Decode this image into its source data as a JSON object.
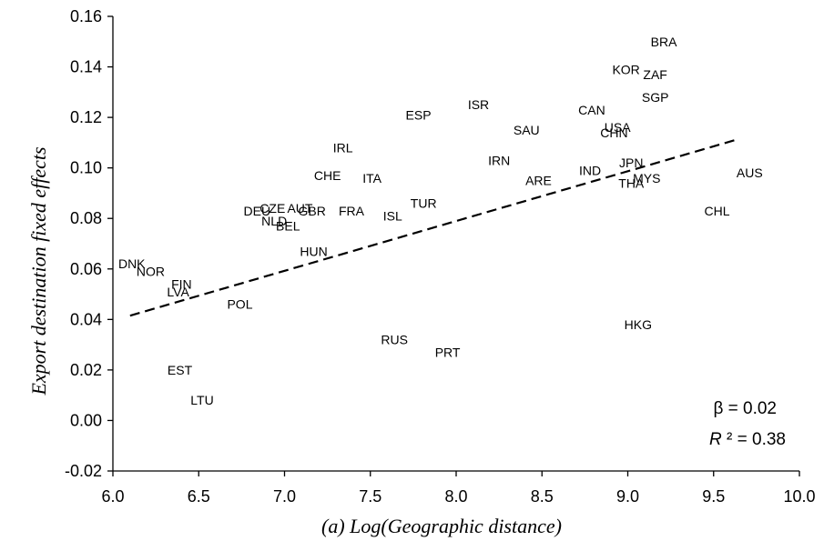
{
  "chart_data": {
    "type": "scatter",
    "xlabel": "(a) Log(Geographic distance)",
    "ylabel": "Export destination fixed effects",
    "xlim": [
      6.0,
      10.0
    ],
    "ylim": [
      -0.02,
      0.16
    ],
    "x_ticks": [
      "6.0",
      "6.5",
      "7.0",
      "7.5",
      "8.0",
      "8.5",
      "9.0",
      "9.5",
      "10.0"
    ],
    "y_ticks": [
      "-0.02",
      "0.00",
      "0.02",
      "0.04",
      "0.06",
      "0.08",
      "0.10",
      "0.12",
      "0.14",
      "0.16"
    ],
    "grid": false,
    "marker": "text-label",
    "points": [
      {
        "label": "BRA",
        "x": 9.21,
        "y": 0.15
      },
      {
        "label": "KOR",
        "x": 8.99,
        "y": 0.139
      },
      {
        "label": "ZAF",
        "x": 9.16,
        "y": 0.137
      },
      {
        "label": "SGP",
        "x": 9.16,
        "y": 0.128
      },
      {
        "label": "ISR",
        "x": 8.13,
        "y": 0.125
      },
      {
        "label": "CAN",
        "x": 8.79,
        "y": 0.123
      },
      {
        "label": "ESP",
        "x": 7.78,
        "y": 0.121
      },
      {
        "label": "SAU",
        "x": 8.41,
        "y": 0.115
      },
      {
        "label": "USA",
        "x": 8.94,
        "y": 0.116
      },
      {
        "label": "CHN",
        "x": 8.92,
        "y": 0.114
      },
      {
        "label": "IRL",
        "x": 7.34,
        "y": 0.108
      },
      {
        "label": "IRN",
        "x": 8.25,
        "y": 0.103
      },
      {
        "label": "JPN",
        "x": 9.02,
        "y": 0.102
      },
      {
        "label": "IND",
        "x": 8.78,
        "y": 0.099
      },
      {
        "label": "AUS",
        "x": 9.71,
        "y": 0.098
      },
      {
        "label": "CHE",
        "x": 7.25,
        "y": 0.097
      },
      {
        "label": "ITA",
        "x": 7.51,
        "y": 0.096
      },
      {
        "label": "MYS",
        "x": 9.11,
        "y": 0.096
      },
      {
        "label": "ARE",
        "x": 8.48,
        "y": 0.095
      },
      {
        "label": "THA",
        "x": 9.02,
        "y": 0.094
      },
      {
        "label": "TUR",
        "x": 7.81,
        "y": 0.086
      },
      {
        "label": "DEU",
        "x": 6.84,
        "y": 0.083
      },
      {
        "label": "CZE",
        "x": 6.93,
        "y": 0.084
      },
      {
        "label": "AUT",
        "x": 7.09,
        "y": 0.084
      },
      {
        "label": "GBR",
        "x": 7.16,
        "y": 0.083
      },
      {
        "label": "FRA",
        "x": 7.39,
        "y": 0.083
      },
      {
        "label": "CHL",
        "x": 9.52,
        "y": 0.083
      },
      {
        "label": "ISL",
        "x": 7.63,
        "y": 0.081
      },
      {
        "label": "NLD",
        "x": 6.94,
        "y": 0.079
      },
      {
        "label": "BEL",
        "x": 7.02,
        "y": 0.077
      },
      {
        "label": "HUN",
        "x": 7.17,
        "y": 0.067
      },
      {
        "label": "DNK",
        "x": 6.11,
        "y": 0.062
      },
      {
        "label": "NOR",
        "x": 6.22,
        "y": 0.059
      },
      {
        "label": "FIN",
        "x": 6.4,
        "y": 0.054
      },
      {
        "label": "LVA",
        "x": 6.38,
        "y": 0.051
      },
      {
        "label": "POL",
        "x": 6.74,
        "y": 0.046
      },
      {
        "label": "HKG",
        "x": 9.06,
        "y": 0.038
      },
      {
        "label": "RUS",
        "x": 7.64,
        "y": 0.032
      },
      {
        "label": "PRT",
        "x": 7.95,
        "y": 0.027
      },
      {
        "label": "EST",
        "x": 6.39,
        "y": 0.02
      },
      {
        "label": "LTU",
        "x": 6.52,
        "y": 0.008
      }
    ],
    "trendline": {
      "style": "dashed",
      "x": [
        6.1,
        9.65
      ],
      "y": [
        0.0415,
        0.1115
      ]
    },
    "annotations": {
      "beta": "β = 0.02",
      "r2_symbol": "R",
      "r2_rest": " ² = 0.38"
    }
  }
}
